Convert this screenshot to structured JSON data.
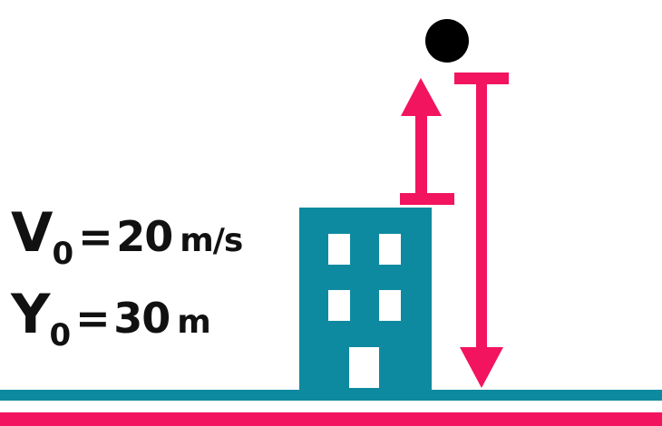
{
  "equations": {
    "v0": {
      "symbol": "V",
      "subscript": "0",
      "equals": "=",
      "value": "20",
      "unit": "m/s"
    },
    "y0": {
      "symbol": "Y",
      "subscript": "0",
      "equals": "=",
      "value": "30",
      "unit": "m"
    }
  },
  "colors": {
    "building": "#0e8aa0",
    "arrows": "#f2145f",
    "ground_line": "#0e8aa0",
    "ground_base": "#f2145f",
    "ball": "#000000",
    "text": "#111111"
  },
  "icons": [
    "building-icon",
    "ball-icon",
    "up-arrow-icon",
    "down-arrow-icon"
  ]
}
